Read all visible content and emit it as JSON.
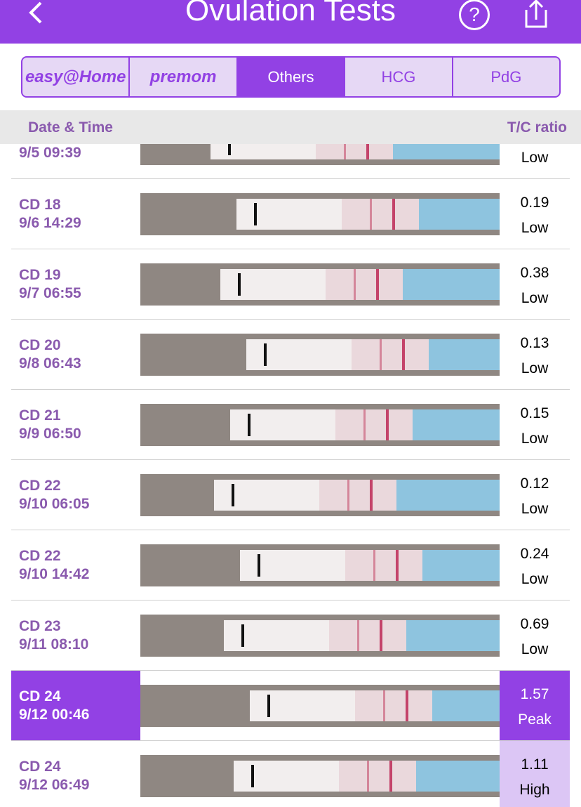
{
  "header": {
    "title": "Ovulation Tests",
    "help": "?"
  },
  "tabs": [
    "easy@Home",
    "premom",
    "Others",
    "HCG",
    "PdG"
  ],
  "selected_tab": 2,
  "columns": [
    "Date & Time",
    "T/C ratio"
  ],
  "rows": [
    {
      "time": "9/5 09:39",
      "level": "Low"
    },
    {
      "cd": "CD 18",
      "time": "9/6 14:29",
      "ratio": "0.19",
      "level": "Low"
    },
    {
      "cd": "CD 19",
      "time": "9/7 06:55",
      "ratio": "0.38",
      "level": "Low"
    },
    {
      "cd": "CD 20",
      "time": "9/8 06:43",
      "ratio": "0.13",
      "level": "Low"
    },
    {
      "cd": "CD 21",
      "time": "9/9 06:50",
      "ratio": "0.15",
      "level": "Low"
    },
    {
      "cd": "CD 22",
      "time": "9/10 06:05",
      "ratio": "0.12",
      "level": "Low"
    },
    {
      "cd": "CD 22",
      "time": "9/10 14:42",
      "ratio": "0.24",
      "level": "Low"
    },
    {
      "cd": "CD 23",
      "time": "9/11 08:10",
      "ratio": "0.69",
      "level": "Low"
    },
    {
      "cd": "CD 24",
      "time": "9/12 00:46",
      "ratio": "1.57",
      "level": "Peak"
    },
    {
      "cd": "CD 24",
      "time": "9/12 06:49",
      "ratio": "1.11",
      "level": "High"
    }
  ]
}
